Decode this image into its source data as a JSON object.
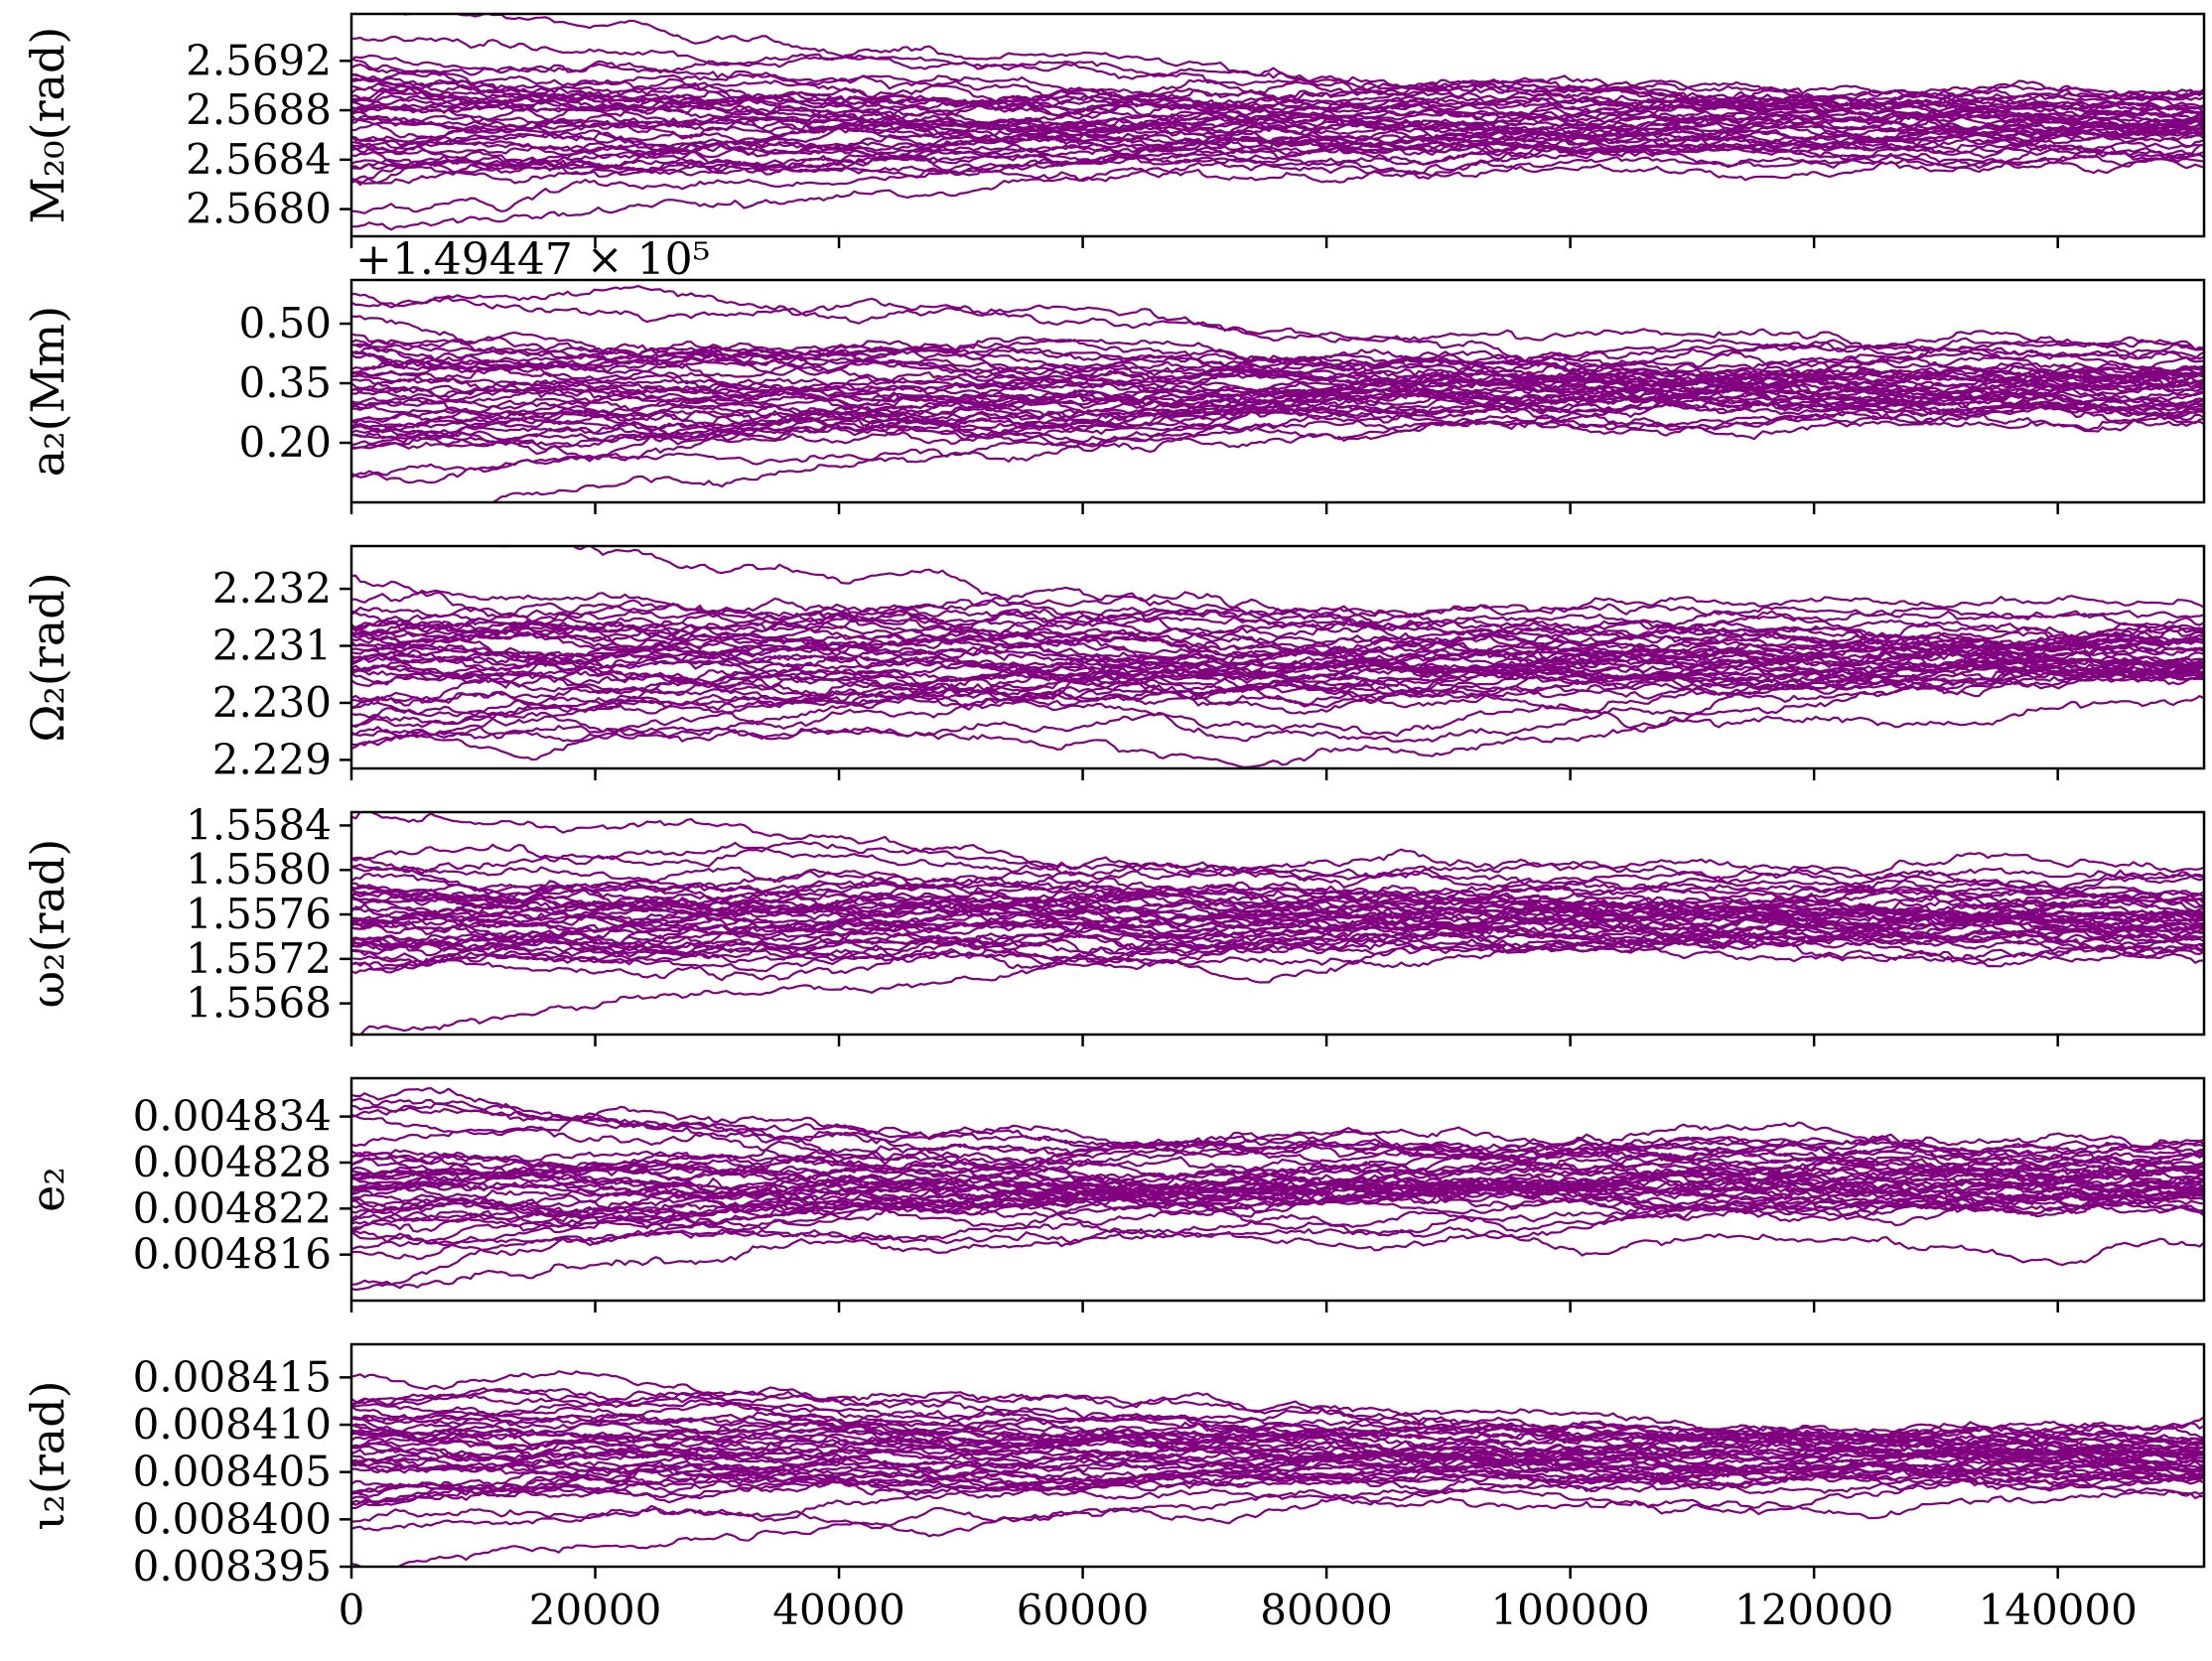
{
  "chart_data": [
    {
      "type": "line",
      "ylabel": "M₂₀(rad)",
      "yticks": [
        2.568,
        2.5684,
        2.5688,
        2.5692
      ],
      "ytick_labels": [
        "2.5680",
        "2.5684",
        "2.5688",
        "2.5692"
      ],
      "ylim": [
        2.56778,
        2.56958
      ],
      "xlim": [
        0,
        152000
      ],
      "n_walkers": 40,
      "band_center": 2.5687,
      "band_spread": 0.00038,
      "color": "#800080"
    },
    {
      "type": "line",
      "ylabel": "a₂(Mm)",
      "offset_text": "+1.49447 × 10⁵",
      "yticks": [
        0.2,
        0.35,
        0.5
      ],
      "ytick_labels": [
        "0.20",
        "0.35",
        "0.50"
      ],
      "ylim": [
        0.05,
        0.61
      ],
      "xlim": [
        0,
        152000
      ],
      "n_walkers": 40,
      "band_center": 0.35,
      "band_spread": 0.12,
      "color": "#800080"
    },
    {
      "type": "line",
      "ylabel": "Ω₂(rad)",
      "yticks": [
        2.229,
        2.23,
        2.231,
        2.232
      ],
      "ytick_labels": [
        "2.229",
        "2.230",
        "2.231",
        "2.232"
      ],
      "ylim": [
        2.22885,
        2.23275
      ],
      "xlim": [
        0,
        152000
      ],
      "n_walkers": 40,
      "band_center": 2.2307,
      "band_spread": 0.0009,
      "color": "#800080"
    },
    {
      "type": "line",
      "ylabel": "ω₂(rad)",
      "yticks": [
        1.5568,
        1.5572,
        1.5576,
        1.558,
        1.5584
      ],
      "ytick_labels": [
        "1.5568",
        "1.5572",
        "1.5576",
        "1.5580",
        "1.5584"
      ],
      "ylim": [
        1.55652,
        1.55852
      ],
      "xlim": [
        0,
        152000
      ],
      "n_walkers": 40,
      "band_center": 1.5576,
      "band_spread": 0.00045,
      "color": "#800080"
    },
    {
      "type": "line",
      "ylabel": "e₂",
      "yticks": [
        0.004816,
        0.004822,
        0.004828,
        0.004834
      ],
      "ytick_labels": [
        "0.004816",
        "0.004822",
        "0.004828",
        "0.004834"
      ],
      "ylim": [
        0.00481,
        0.004839
      ],
      "xlim": [
        0,
        152000
      ],
      "n_walkers": 40,
      "band_center": 0.004825,
      "band_spread": 6.5e-06,
      "color": "#800080"
    },
    {
      "type": "line",
      "ylabel": "ι₂(rad)",
      "yticks": [
        0.008395,
        0.0084,
        0.008405,
        0.00841,
        0.008415
      ],
      "ytick_labels": [
        "0.008395",
        "0.008400",
        "0.008405",
        "0.008410",
        "0.008415"
      ],
      "ylim": [
        0.008395,
        0.0084185
      ],
      "xlim": [
        0,
        152000
      ],
      "xticks": [
        0,
        20000,
        40000,
        60000,
        80000,
        100000,
        120000,
        140000
      ],
      "xtick_labels": [
        "0",
        "20000",
        "40000",
        "60000",
        "80000",
        "100000",
        "120000",
        "140000"
      ],
      "n_walkers": 40,
      "band_center": 0.008406,
      "band_spread": 4.8e-06,
      "color": "#800080"
    }
  ]
}
